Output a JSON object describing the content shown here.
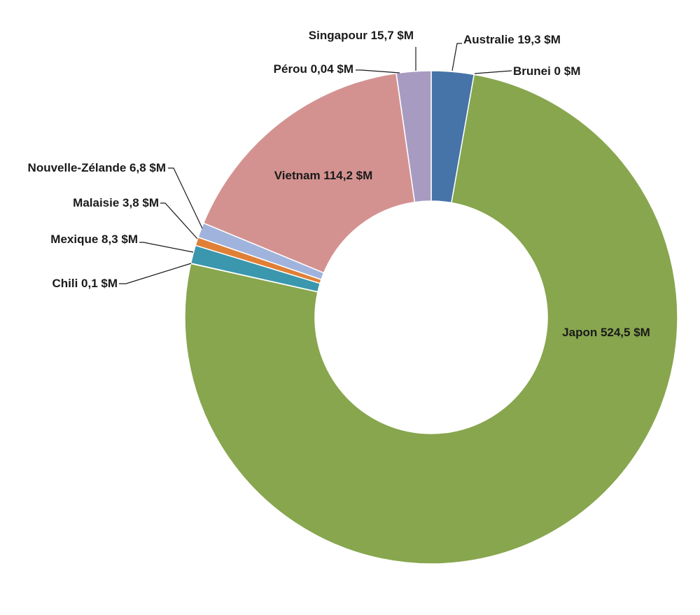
{
  "chart_data": {
    "type": "pie",
    "variant": "donut",
    "unit": "$M",
    "slices": [
      {
        "name": "Australie",
        "value": 19.3,
        "label": "Australie 19,3 $M",
        "color": "#4673a8"
      },
      {
        "name": "Brunei",
        "value": 0,
        "label": "Brunei 0 $M",
        "color": "#c0504d"
      },
      {
        "name": "Japon",
        "value": 524.5,
        "label": "Japon 524,5 $M",
        "color": "#87a64e"
      },
      {
        "name": "Chili",
        "value": 0.1,
        "label": "Chili 0,1 $M",
        "color": "#7b5ea0"
      },
      {
        "name": "Mexique",
        "value": 8.3,
        "label": "Mexique 8,3 $M",
        "color": "#3a97ad"
      },
      {
        "name": "Malaisie",
        "value": 3.8,
        "label": "Malaisie 3,8 $M",
        "color": "#e07f36"
      },
      {
        "name": "Nouvelle-Zélande",
        "value": 6.8,
        "label": "Nouvelle-Zélande 6,8 $M",
        "color": "#9fb3dc"
      },
      {
        "name": "Vietnam",
        "value": 114.2,
        "label": "Vietnam 114,2 $M",
        "color": "#d39290"
      },
      {
        "name": "Pérou",
        "value": 0.04,
        "label": "Pérou 0,04 $M",
        "color": "#bccd93"
      },
      {
        "name": "Singapour",
        "value": 15.7,
        "label": "Singapour 15,7 $M",
        "color": "#a89bc1"
      }
    ],
    "legend": "none"
  }
}
